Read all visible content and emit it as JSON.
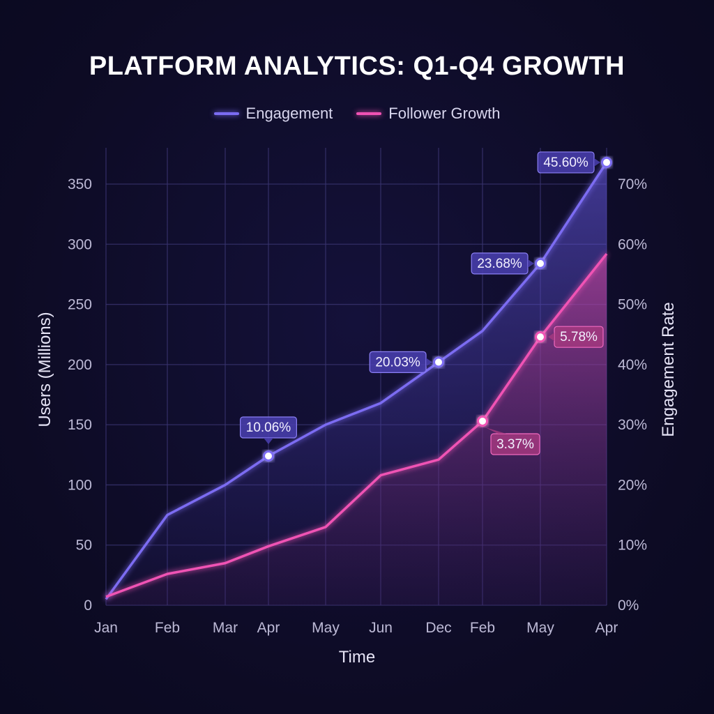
{
  "chart_data": {
    "type": "line",
    "title": "PLATFORM ANALYTICS: Q1-Q4 GROWTH",
    "xlabel": "Time",
    "ylabel": "Users (Millions)",
    "y2label": "Engagement Rate",
    "categories": [
      "Jan",
      "Feb",
      "Mar",
      "Apr",
      "May",
      "Jun",
      "Dec",
      "Feb",
      "May",
      "Apr"
    ],
    "ylim": [
      0,
      350
    ],
    "yticks": [
      0,
      50,
      100,
      150,
      200,
      250,
      300,
      350
    ],
    "y2lim": [
      0,
      70
    ],
    "y2ticks": [
      "0%",
      "10%",
      "20%",
      "30%",
      "40%",
      "50%",
      "60%",
      "70%"
    ],
    "grid": true,
    "legend_position": "top-center",
    "series": [
      {
        "name": "Engagement",
        "color": "#7b6cf2",
        "values": [
          5,
          75,
          100,
          124,
          150,
          168,
          202,
          228,
          284,
          368
        ]
      },
      {
        "name": "Follower Growth",
        "color": "#f052b4",
        "values": [
          7,
          26,
          35,
          49,
          65,
          108,
          121,
          153,
          223,
          292
        ]
      }
    ],
    "annotations": [
      {
        "series": 0,
        "index": 3,
        "text": "10.06%",
        "side": "above"
      },
      {
        "series": 0,
        "index": 6,
        "text": "20.03%",
        "side": "left"
      },
      {
        "series": 0,
        "index": 8,
        "text": "23.68%",
        "side": "left"
      },
      {
        "series": 0,
        "index": 9,
        "text": "45.60%",
        "side": "left"
      },
      {
        "series": 1,
        "index": 7,
        "text": "3.37%",
        "side": "below"
      },
      {
        "series": 1,
        "index": 8,
        "text": "5.78%",
        "side": "right"
      }
    ]
  }
}
